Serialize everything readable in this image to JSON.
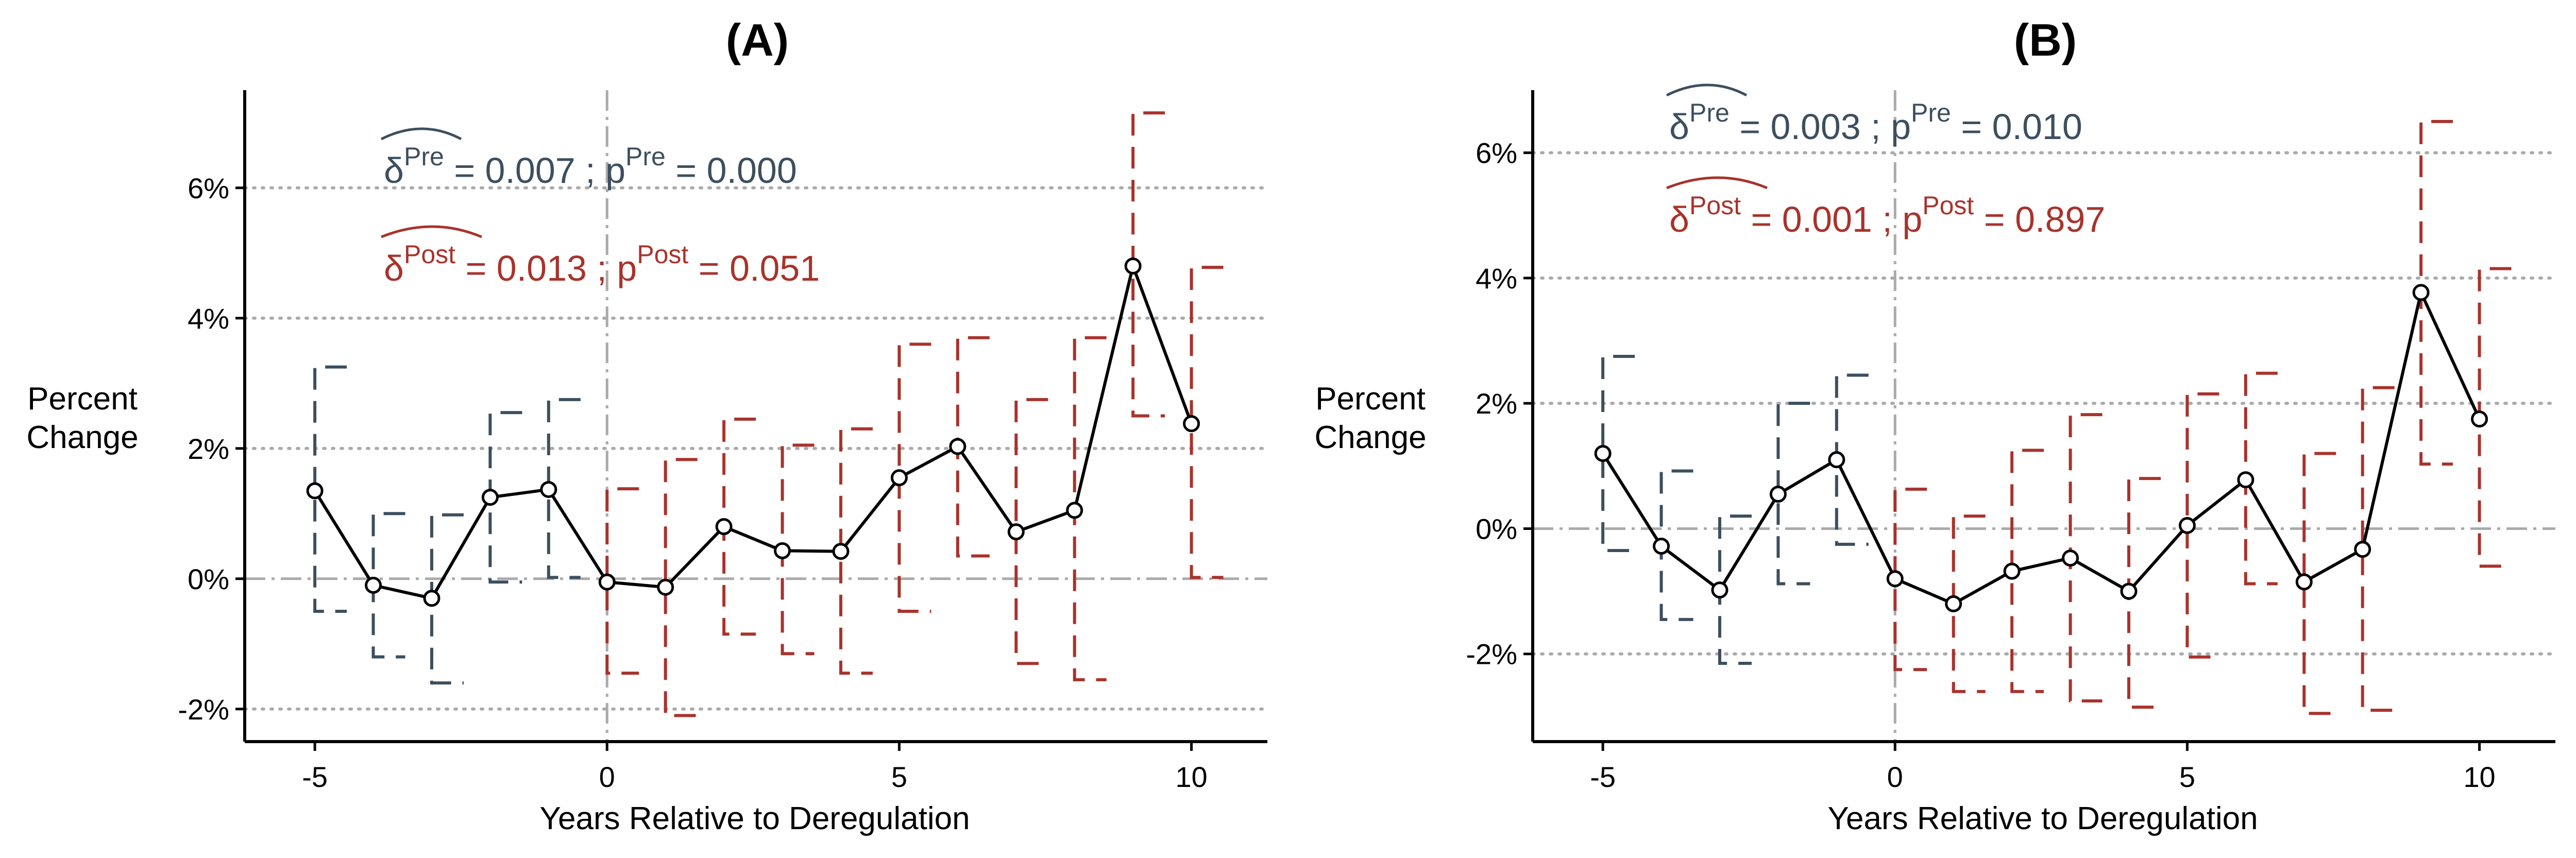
{
  "colors": {
    "pre": "#3d4f5e",
    "post": "#a8332c",
    "line": "#000000",
    "ref": "#aaaaaa",
    "grid": "#aaaaaa"
  },
  "chart_data": [
    {
      "type": "line",
      "title": "(A)",
      "xlabel": "Years Relative to Deregulation",
      "ylabel": [
        "Percent",
        "Change"
      ],
      "xlim": [
        -6.2,
        11.3
      ],
      "ylim": [
        -2.5,
        7.5
      ],
      "xticks": [
        -5,
        0,
        5,
        10
      ],
      "xtick_labels": [
        "-5",
        "0",
        "5",
        "10"
      ],
      "yticks": [
        -2,
        0,
        2,
        4,
        6
      ],
      "ytick_labels": [
        "-2%",
        "0%",
        "2%",
        "4%",
        "6%"
      ],
      "grid": "dotted horizontal at y ticks",
      "event_year": 0,
      "annotations": {
        "pre": {
          "label": "δ",
          "sup": "Pre",
          "delta": "0.007",
          "p_label": "p",
          "p_sup": "Pre",
          "p": "0.000",
          "eq": "=",
          "sep": ";"
        },
        "post": {
          "label": "δ",
          "sup": "Post",
          "delta": "0.013",
          "p_label": "p",
          "p_sup": "Post",
          "p": "0.051",
          "eq": "=",
          "sep": ";"
        }
      },
      "series": [
        {
          "x": [
            -5,
            -4,
            -3,
            -2,
            -1,
            0,
            1,
            2,
            3,
            4,
            5,
            6,
            7,
            8,
            9,
            10
          ],
          "y": [
            1.35,
            -0.1,
            -0.3,
            1.25,
            1.37,
            -0.05,
            -0.13,
            0.8,
            0.43,
            0.42,
            1.55,
            2.03,
            0.72,
            1.05,
            4.8,
            2.38
          ],
          "ci_low": [
            -0.5,
            -1.2,
            -1.6,
            -0.05,
            0.02,
            -1.45,
            -2.1,
            -0.85,
            -1.15,
            -1.45,
            -0.5,
            0.35,
            -1.3,
            -1.55,
            2.5,
            0.02
          ],
          "ci_high": [
            3.25,
            1.0,
            0.98,
            2.55,
            2.75,
            1.38,
            1.83,
            2.45,
            2.05,
            2.3,
            3.6,
            3.7,
            2.75,
            3.7,
            7.15,
            4.78
          ]
        }
      ]
    },
    {
      "type": "line",
      "title": "(B)",
      "xlabel": "Years Relative to Deregulation",
      "ylabel": [
        "Percent",
        "Change"
      ],
      "xlim": [
        -6.2,
        11.3
      ],
      "ylim": [
        -3.4,
        7.0
      ],
      "xticks": [
        -5,
        0,
        5,
        10
      ],
      "xtick_labels": [
        "-5",
        "0",
        "5",
        "10"
      ],
      "yticks": [
        -2,
        0,
        2,
        4,
        6
      ],
      "ytick_labels": [
        "-2%",
        "0%",
        "2%",
        "4%",
        "6%"
      ],
      "grid": "dotted horizontal at y ticks",
      "event_year": 0,
      "annotations": {
        "pre": {
          "label": "δ",
          "sup": "Pre",
          "delta": "0.003",
          "p_label": "p",
          "p_sup": "Pre",
          "p": "0.010",
          "eq": "=",
          "sep": ";"
        },
        "post": {
          "label": "δ",
          "sup": "Post",
          "delta": "0.001",
          "p_label": "p",
          "p_sup": "Post",
          "p": "0.897",
          "eq": "=",
          "sep": ";"
        }
      },
      "series": [
        {
          "x": [
            -5,
            -4,
            -3,
            -2,
            -1,
            0,
            1,
            2,
            3,
            4,
            5,
            6,
            7,
            8,
            9,
            10
          ],
          "y": [
            1.2,
            -0.28,
            -0.98,
            0.55,
            1.1,
            -0.8,
            -1.2,
            -0.68,
            -0.47,
            -1.0,
            0.05,
            0.78,
            -0.85,
            -0.33,
            3.77,
            1.75
          ],
          "ci_low": [
            -0.35,
            -1.45,
            -2.15,
            -0.88,
            -0.25,
            -2.25,
            -2.6,
            -2.6,
            -2.75,
            -2.85,
            -2.05,
            -0.88,
            -2.95,
            -2.9,
            1.03,
            -0.6
          ],
          "ci_high": [
            2.75,
            0.92,
            0.2,
            2.0,
            2.45,
            0.63,
            0.2,
            1.25,
            1.82,
            0.8,
            2.15,
            2.48,
            1.2,
            2.25,
            6.5,
            4.15
          ]
        }
      ]
    }
  ]
}
